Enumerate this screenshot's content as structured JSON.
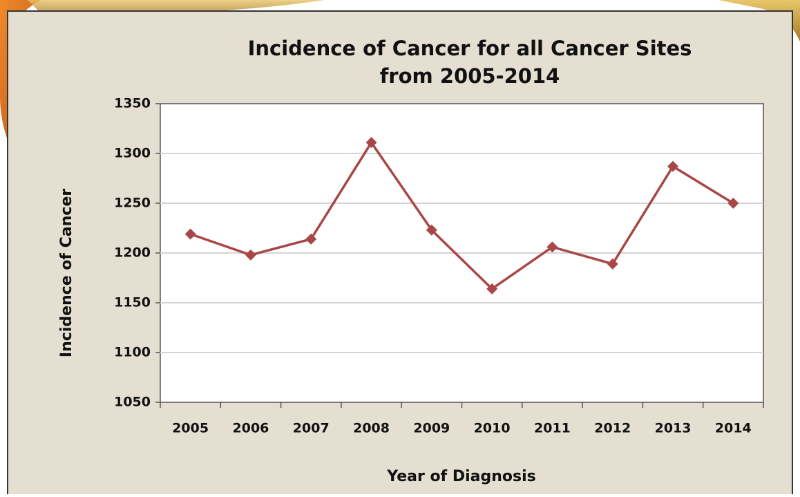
{
  "chart_data": {
    "type": "line",
    "title": [
      "Incidence of Cancer for all Cancer Sites",
      "from 2005-2014"
    ],
    "x_label": "Year of Diagnosis",
    "y_label": "Incidence of Cancer",
    "categories": [
      "2005",
      "2006",
      "2007",
      "2008",
      "2009",
      "2010",
      "2011",
      "2012",
      "2013",
      "2014"
    ],
    "values": [
      1219,
      1198,
      1214,
      1311,
      1223,
      1164,
      1206,
      1189,
      1287,
      1250
    ],
    "color": "#a94646",
    "ylim": [
      1050,
      1350
    ],
    "yticks": [
      1050,
      1100,
      1150,
      1200,
      1250,
      1300,
      1350
    ],
    "grid": true
  }
}
